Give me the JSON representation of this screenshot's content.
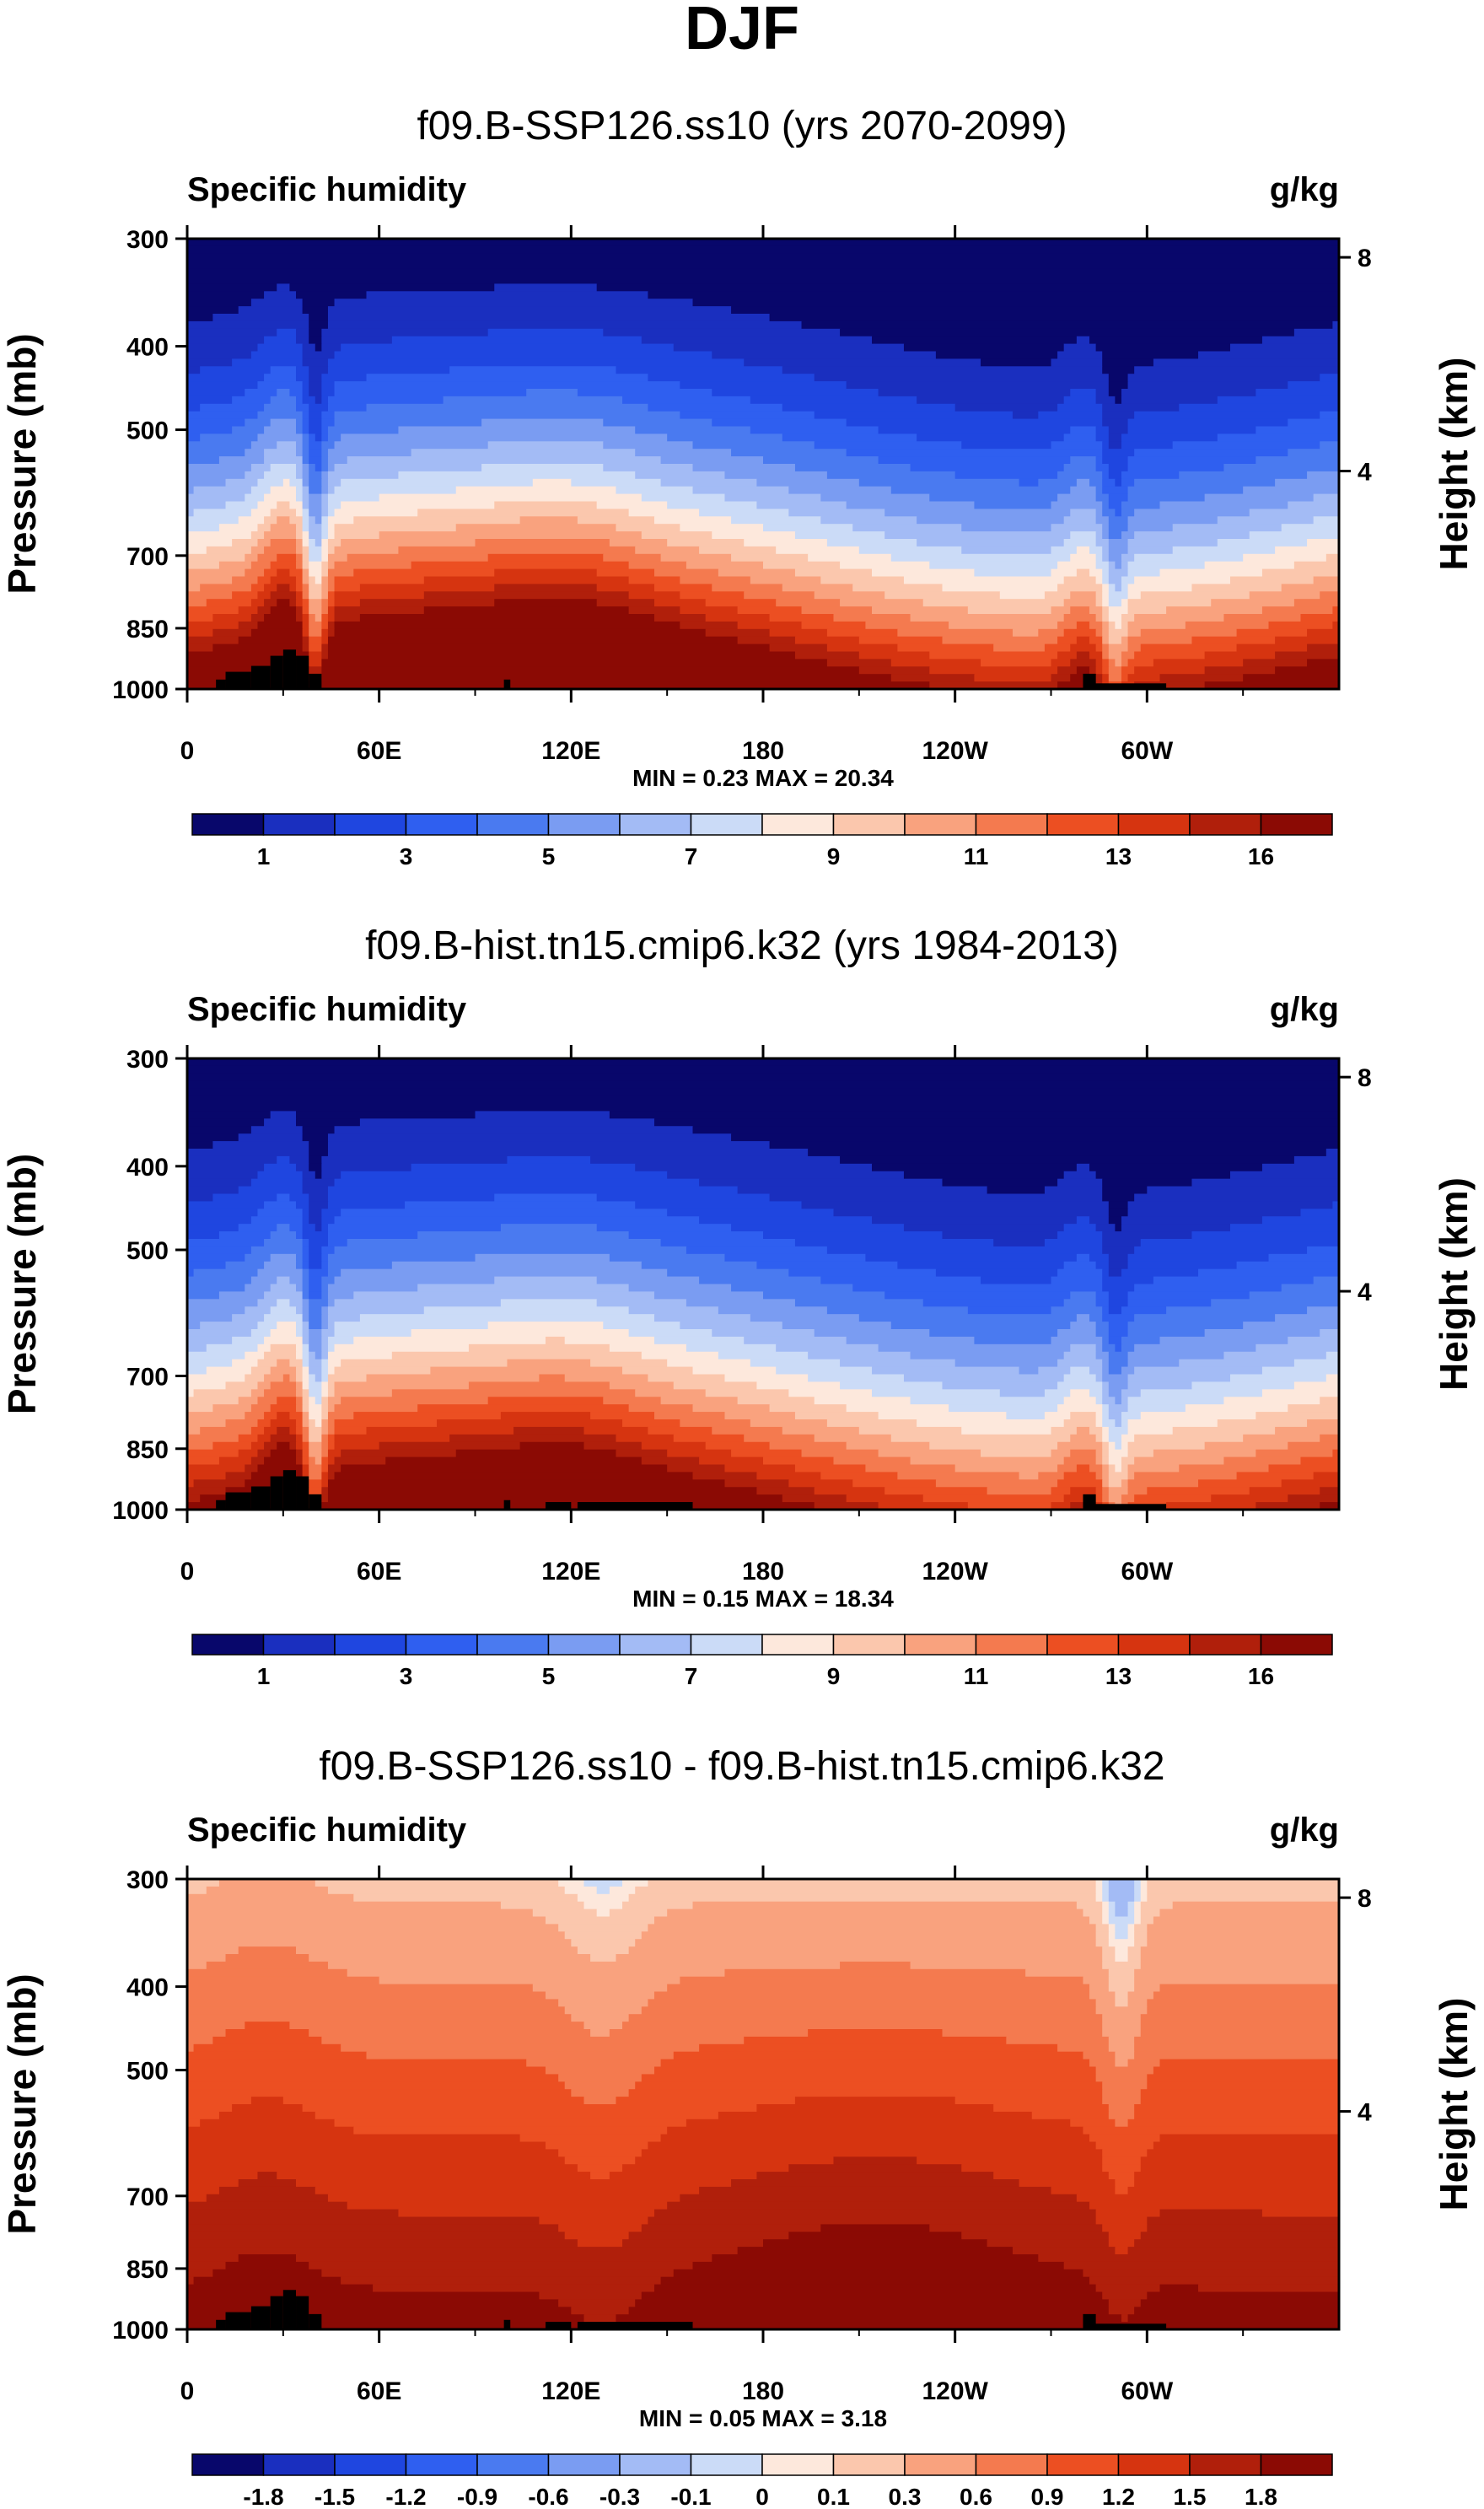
{
  "figure_title": "DJF",
  "palette": {
    "diverging": [
      "#08076b",
      "#1a2fbf",
      "#1f46e0",
      "#2f5ff0",
      "#4a7af0",
      "#7a9cf2",
      "#a3bbf5",
      "#cbdbf7",
      "#fde8dc",
      "#fbc7ad",
      "#f9a27e",
      "#f47a4f",
      "#ec4f22",
      "#d63410",
      "#b01f0b",
      "#8b0a04"
    ],
    "topography": "#000000",
    "frame": "#000000"
  },
  "chart_data": [
    {
      "type": "heatmap",
      "panel": "top",
      "title": "f09.B-SSP126.ss10 (yrs 2070-2099)",
      "left_label": "Specific humidity",
      "right_label": "g/kg",
      "ylabel": "Pressure (mb)",
      "y2label": "Height (km)",
      "x_ticks": [
        "0",
        "60E",
        "120E",
        "180",
        "120W",
        "60W"
      ],
      "x_tick_values": [
        0,
        60,
        120,
        180,
        240,
        300
      ],
      "xlim": [
        0,
        360
      ],
      "y_ticks": [
        "300",
        "400",
        "500",
        "700",
        "850",
        "1000"
      ],
      "y_tick_values": [
        300,
        400,
        500,
        700,
        850,
        1000
      ],
      "ylim": [
        300,
        1000
      ],
      "y2_ticks": [
        "8",
        "4"
      ],
      "y2_tick_values": [
        8,
        4
      ],
      "min_max_text": "MIN =   0.23  MAX =  20.34",
      "colorbar_labels": [
        "1",
        "3",
        "5",
        "7",
        "9",
        "11",
        "13",
        "16"
      ],
      "colorbar_label_positions": [
        1,
        3,
        5,
        7,
        9,
        11,
        13,
        15
      ]
    },
    {
      "type": "heatmap",
      "panel": "middle",
      "title": "f09.B-hist.tn15.cmip6.k32 (yrs 1984-2013)",
      "left_label": "Specific humidity",
      "right_label": "g/kg",
      "ylabel": "Pressure (mb)",
      "y2label": "Height (km)",
      "x_ticks": [
        "0",
        "60E",
        "120E",
        "180",
        "120W",
        "60W"
      ],
      "x_tick_values": [
        0,
        60,
        120,
        180,
        240,
        300
      ],
      "xlim": [
        0,
        360
      ],
      "y_ticks": [
        "300",
        "400",
        "500",
        "700",
        "850",
        "1000"
      ],
      "y_tick_values": [
        300,
        400,
        500,
        700,
        850,
        1000
      ],
      "ylim": [
        300,
        1000
      ],
      "y2_ticks": [
        "8",
        "4"
      ],
      "y2_tick_values": [
        8,
        4
      ],
      "min_max_text": "MIN =   0.15  MAX =  18.34",
      "colorbar_labels": [
        "1",
        "3",
        "5",
        "7",
        "9",
        "11",
        "13",
        "16"
      ],
      "colorbar_label_positions": [
        1,
        3,
        5,
        7,
        9,
        11,
        13,
        15
      ]
    },
    {
      "type": "heatmap",
      "panel": "bottom",
      "title": "f09.B-SSP126.ss10 - f09.B-hist.tn15.cmip6.k32",
      "left_label": "Specific humidity",
      "right_label": "g/kg",
      "ylabel": "Pressure (mb)",
      "y2label": "Height (km)",
      "x_ticks": [
        "0",
        "60E",
        "120E",
        "180",
        "120W",
        "60W"
      ],
      "x_tick_values": [
        0,
        60,
        120,
        180,
        240,
        300
      ],
      "xlim": [
        0,
        360
      ],
      "y_ticks": [
        "300",
        "400",
        "500",
        "700",
        "850",
        "1000"
      ],
      "y_tick_values": [
        300,
        400,
        500,
        700,
        850,
        1000
      ],
      "ylim": [
        300,
        1000
      ],
      "y2_ticks": [
        "8",
        "4"
      ],
      "y2_tick_values": [
        8,
        4
      ],
      "min_max_text": "MIN =   0.05  MAX =   3.18",
      "colorbar_labels": [
        "-1.8",
        "-1.5",
        "-1.2",
        "-0.9",
        "-0.6",
        "-0.3",
        "-0.1",
        "0",
        "0.1",
        "0.3",
        "0.6",
        "0.9",
        "1.2",
        "1.5",
        "1.8"
      ],
      "colorbar_label_positions": [
        1,
        2,
        3,
        4,
        5,
        6,
        7,
        8,
        9,
        10,
        11,
        12,
        13,
        14,
        15
      ]
    }
  ]
}
